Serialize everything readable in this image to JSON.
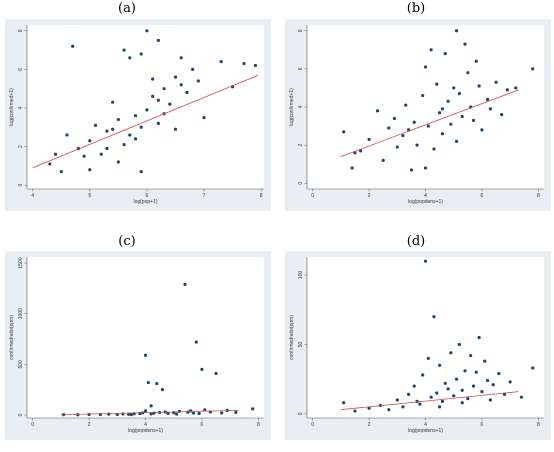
{
  "panels": [
    {
      "label": "(a)"
    },
    {
      "label": "(b)"
    },
    {
      "label": "(c)"
    },
    {
      "label": "(d)"
    }
  ],
  "colors": {
    "frame": "#e9eef3",
    "plot": "#ffffff",
    "point": "#1a476f",
    "fit": "#d04747"
  },
  "chart_data": [
    {
      "type": "scatter",
      "xlabel": "log(pop+1)",
      "ylabel": "log(confirmed+1)",
      "xlim": [
        3.9,
        8.05
      ],
      "ylim": [
        -0.2,
        8.3
      ],
      "xticks": [
        4,
        5,
        6,
        7,
        8
      ],
      "yticks": [
        0,
        2,
        4,
        6,
        8
      ],
      "fit_line": {
        "x": [
          4.0,
          7.95
        ],
        "y": [
          0.9,
          5.7
        ]
      },
      "points": [
        [
          4.5,
          0.7
        ],
        [
          4.7,
          7.2
        ],
        [
          4.3,
          1.1
        ],
        [
          4.6,
          2.6
        ],
        [
          4.8,
          1.9
        ],
        [
          4.9,
          1.5
        ],
        [
          5.0,
          2.3
        ],
        [
          5.1,
          3.1
        ],
        [
          5.2,
          1.6
        ],
        [
          5.3,
          2.8
        ],
        [
          5.4,
          4.3
        ],
        [
          5.5,
          1.2
        ],
        [
          5.5,
          3.4
        ],
        [
          5.6,
          2.1
        ],
        [
          5.6,
          7.0
        ],
        [
          5.7,
          6.6
        ],
        [
          5.8,
          2.4
        ],
        [
          5.8,
          3.6
        ],
        [
          5.9,
          6.8
        ],
        [
          5.9,
          0.7
        ],
        [
          6.0,
          3.9
        ],
        [
          6.0,
          8.0
        ],
        [
          6.1,
          4.6
        ],
        [
          6.2,
          3.2
        ],
        [
          6.2,
          7.5
        ],
        [
          6.3,
          5.0
        ],
        [
          6.4,
          4.2
        ],
        [
          6.5,
          5.6
        ],
        [
          6.5,
          2.9
        ],
        [
          6.6,
          5.2
        ],
        [
          6.7,
          4.8
        ],
        [
          6.8,
          6.0
        ],
        [
          6.9,
          5.4
        ],
        [
          7.0,
          3.5
        ],
        [
          7.3,
          6.4
        ],
        [
          7.5,
          5.1
        ],
        [
          7.7,
          6.3
        ],
        [
          7.9,
          6.2
        ],
        [
          5.3,
          1.9
        ],
        [
          5.7,
          2.6
        ],
        [
          6.1,
          5.5
        ],
        [
          6.3,
          3.7
        ],
        [
          5.0,
          0.8
        ],
        [
          4.4,
          1.6
        ],
        [
          6.6,
          6.6
        ],
        [
          5.4,
          2.9
        ],
        [
          5.9,
          3.0
        ],
        [
          6.2,
          4.4
        ]
      ]
    },
    {
      "type": "scatter",
      "xlabel": "log(popdens+1)",
      "ylabel": "log(confirmed+1)",
      "xlim": [
        -0.2,
        8.2
      ],
      "ylim": [
        -0.3,
        8.3
      ],
      "xticks": [
        0,
        2,
        4,
        6,
        8
      ],
      "yticks": [
        0,
        2,
        4,
        6,
        8
      ],
      "fit_line": {
        "x": [
          1.0,
          7.3
        ],
        "y": [
          1.4,
          4.9
        ]
      },
      "points": [
        [
          1.1,
          2.7
        ],
        [
          1.4,
          0.8
        ],
        [
          1.5,
          1.6
        ],
        [
          1.7,
          1.7
        ],
        [
          2.0,
          2.3
        ],
        [
          2.3,
          3.8
        ],
        [
          2.5,
          1.2
        ],
        [
          2.7,
          2.9
        ],
        [
          2.9,
          3.4
        ],
        [
          3.0,
          1.9
        ],
        [
          3.2,
          2.5
        ],
        [
          3.3,
          4.1
        ],
        [
          3.5,
          0.7
        ],
        [
          3.6,
          3.2
        ],
        [
          3.7,
          2.0
        ],
        [
          3.9,
          4.6
        ],
        [
          4.0,
          6.1
        ],
        [
          4.1,
          3.0
        ],
        [
          4.2,
          7.0
        ],
        [
          4.3,
          1.8
        ],
        [
          4.4,
          5.2
        ],
        [
          4.5,
          3.7
        ],
        [
          4.6,
          2.6
        ],
        [
          4.7,
          6.8
        ],
        [
          4.8,
          4.3
        ],
        [
          4.9,
          3.1
        ],
        [
          5.0,
          5.0
        ],
        [
          5.1,
          2.2
        ],
        [
          5.1,
          8.0
        ],
        [
          5.2,
          4.7
        ],
        [
          5.3,
          3.5
        ],
        [
          5.4,
          7.3
        ],
        [
          5.5,
          5.8
        ],
        [
          5.6,
          4.0
        ],
        [
          5.7,
          3.3
        ],
        [
          5.8,
          6.4
        ],
        [
          5.9,
          5.1
        ],
        [
          6.0,
          2.8
        ],
        [
          6.2,
          4.4
        ],
        [
          6.3,
          3.9
        ],
        [
          6.5,
          5.3
        ],
        [
          6.7,
          3.6
        ],
        [
          6.9,
          4.9
        ],
        [
          7.2,
          5.0
        ],
        [
          7.8,
          6.0
        ],
        [
          4.0,
          0.8
        ],
        [
          3.4,
          2.8
        ],
        [
          4.6,
          3.9
        ]
      ]
    },
    {
      "type": "scatter",
      "xlabel": "log(popdens+1)",
      "ylabel": "confirmedratio(ppm)",
      "xlim": [
        -0.2,
        8.2
      ],
      "ylim": [
        -30,
        1560
      ],
      "xticks": [
        0,
        2,
        4,
        6,
        8
      ],
      "yticks": [
        0,
        500,
        1000,
        1500
      ],
      "fit_line": {
        "x": [
          1.0,
          7.3
        ],
        "y": [
          2,
          45
        ]
      },
      "points": [
        [
          1.1,
          3
        ],
        [
          1.6,
          2
        ],
        [
          2.0,
          5
        ],
        [
          2.4,
          4
        ],
        [
          2.7,
          8
        ],
        [
          3.0,
          6
        ],
        [
          3.2,
          10
        ],
        [
          3.4,
          7
        ],
        [
          3.6,
          12
        ],
        [
          3.8,
          15
        ],
        [
          3.9,
          20
        ],
        [
          4.0,
          590
        ],
        [
          4.0,
          40
        ],
        [
          4.1,
          320
        ],
        [
          4.2,
          90
        ],
        [
          4.3,
          18
        ],
        [
          4.4,
          310
        ],
        [
          4.5,
          25
        ],
        [
          4.6,
          250
        ],
        [
          4.7,
          30
        ],
        [
          4.8,
          14
        ],
        [
          5.0,
          22
        ],
        [
          5.2,
          35
        ],
        [
          5.4,
          1290
        ],
        [
          5.5,
          28
        ],
        [
          5.6,
          40
        ],
        [
          5.8,
          720
        ],
        [
          5.9,
          15
        ],
        [
          6.0,
          450
        ],
        [
          6.1,
          50
        ],
        [
          6.3,
          30
        ],
        [
          6.5,
          410
        ],
        [
          6.7,
          20
        ],
        [
          6.9,
          45
        ],
        [
          7.2,
          25
        ],
        [
          7.8,
          60
        ],
        [
          3.5,
          3
        ],
        [
          4.2,
          11
        ],
        [
          5.1,
          9
        ],
        [
          5.7,
          19
        ]
      ]
    },
    {
      "type": "scatter",
      "xlabel": "log(popdens+1)",
      "ylabel": "confirmedratio(ppm)",
      "xlim": [
        -0.2,
        8.2
      ],
      "ylim": [
        -3,
        113
      ],
      "xticks": [
        0,
        2,
        4,
        6,
        8
      ],
      "yticks": [
        0,
        50,
        100
      ],
      "fit_line": {
        "x": [
          1.0,
          7.3
        ],
        "y": [
          3,
          16
        ]
      },
      "points": [
        [
          1.1,
          8
        ],
        [
          1.5,
          2
        ],
        [
          2.0,
          4
        ],
        [
          2.4,
          6
        ],
        [
          2.7,
          3
        ],
        [
          3.0,
          10
        ],
        [
          3.2,
          5
        ],
        [
          3.4,
          14
        ],
        [
          3.6,
          20
        ],
        [
          3.8,
          7
        ],
        [
          3.9,
          28
        ],
        [
          4.0,
          110
        ],
        [
          4.1,
          40
        ],
        [
          4.2,
          12
        ],
        [
          4.3,
          70
        ],
        [
          4.4,
          15
        ],
        [
          4.5,
          35
        ],
        [
          4.6,
          9
        ],
        [
          4.7,
          22
        ],
        [
          4.8,
          18
        ],
        [
          4.9,
          44
        ],
        [
          5.0,
          13
        ],
        [
          5.1,
          25
        ],
        [
          5.2,
          50
        ],
        [
          5.3,
          17
        ],
        [
          5.4,
          31
        ],
        [
          5.5,
          11
        ],
        [
          5.6,
          42
        ],
        [
          5.7,
          20
        ],
        [
          5.8,
          30
        ],
        [
          5.9,
          55
        ],
        [
          6.0,
          16
        ],
        [
          6.1,
          38
        ],
        [
          6.2,
          24
        ],
        [
          6.4,
          21
        ],
        [
          6.6,
          29
        ],
        [
          6.8,
          14
        ],
        [
          7.0,
          23
        ],
        [
          7.4,
          12
        ],
        [
          7.8,
          33
        ],
        [
          4.5,
          5
        ],
        [
          3.7,
          9
        ],
        [
          5.3,
          8
        ],
        [
          6.3,
          10
        ]
      ]
    }
  ]
}
